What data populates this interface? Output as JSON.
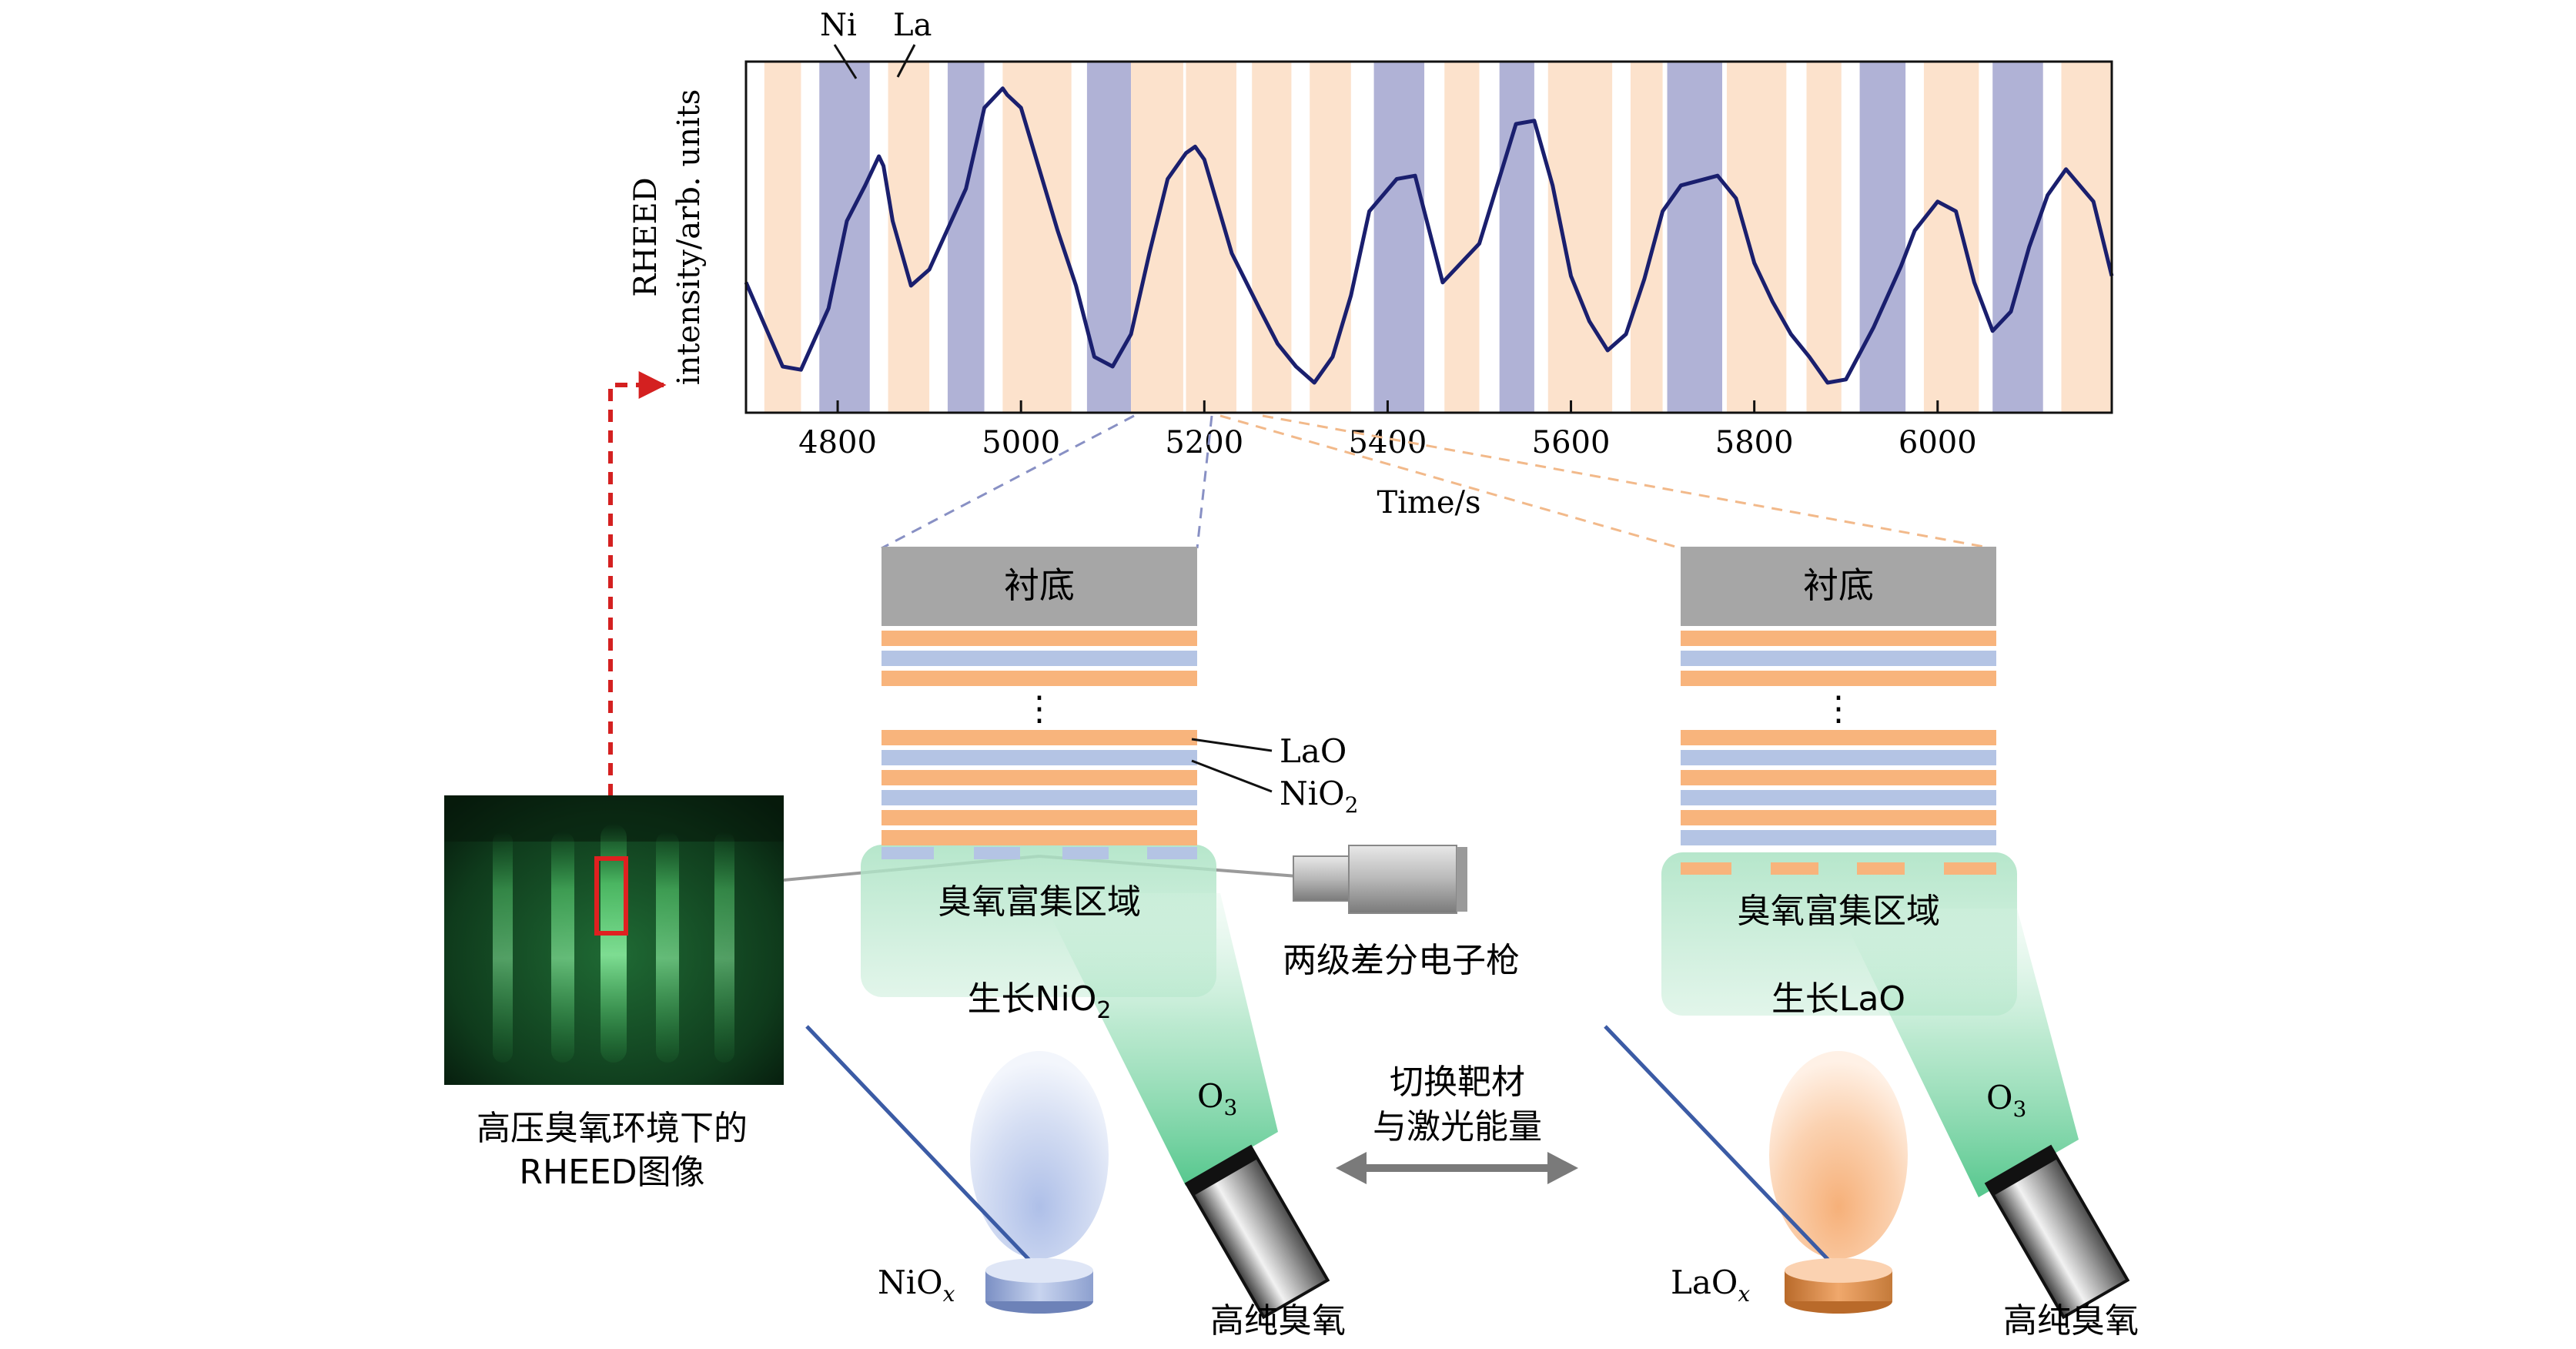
{
  "chart_data": {
    "type": "line",
    "xlabel": "Time/s",
    "ylabel_line1": "RHEED",
    "ylabel_line2": "intensity/arb. units",
    "x_ticks": [
      4800,
      5000,
      5200,
      5400,
      5600,
      5800,
      6000
    ],
    "xlim": [
      4700,
      6190
    ],
    "ylim": [
      0,
      1
    ],
    "legend": {
      "ni": "Ni",
      "la": "La"
    },
    "bands": [
      {
        "start": 4720,
        "end": 4760,
        "kind": "La"
      },
      {
        "start": 4780,
        "end": 4835,
        "kind": "Ni"
      },
      {
        "start": 4855,
        "end": 4900,
        "kind": "La"
      },
      {
        "start": 4920,
        "end": 4960,
        "kind": "Ni"
      },
      {
        "start": 4980,
        "end": 5055,
        "kind": "La"
      },
      {
        "start": 5072,
        "end": 5120,
        "kind": "Ni"
      },
      {
        "start": 5120,
        "end": 5177,
        "kind": "La"
      },
      {
        "start": 5180,
        "end": 5235,
        "kind": "La"
      },
      {
        "start": 5252,
        "end": 5295,
        "kind": "La"
      },
      {
        "start": 5315,
        "end": 5360,
        "kind": "La"
      },
      {
        "start": 5385,
        "end": 5440,
        "kind": "Ni"
      },
      {
        "start": 5462,
        "end": 5500,
        "kind": "La"
      },
      {
        "start": 5522,
        "end": 5560,
        "kind": "Ni"
      },
      {
        "start": 5575,
        "end": 5645,
        "kind": "La"
      },
      {
        "start": 5665,
        "end": 5700,
        "kind": "La"
      },
      {
        "start": 5705,
        "end": 5765,
        "kind": "Ni"
      },
      {
        "start": 5770,
        "end": 5835,
        "kind": "La"
      },
      {
        "start": 5857,
        "end": 5895,
        "kind": "La"
      },
      {
        "start": 5915,
        "end": 5965,
        "kind": "Ni"
      },
      {
        "start": 5985,
        "end": 6045,
        "kind": "La"
      },
      {
        "start": 6060,
        "end": 6115,
        "kind": "Ni"
      },
      {
        "start": 6135,
        "end": 6190,
        "kind": "La"
      }
    ],
    "series": [
      {
        "x": [
          4700,
          4740,
          4760,
          4790,
          4810,
          4830,
          4845,
          4850,
          4860,
          4880,
          4900,
          4940,
          4960,
          4980,
          4985,
          5000,
          5040,
          5060,
          5080,
          5100,
          5120,
          5140,
          5160,
          5180,
          5190,
          5200,
          5230,
          5260,
          5280,
          5300,
          5320,
          5340,
          5360,
          5380,
          5410,
          5430,
          5460,
          5500,
          5540,
          5560,
          5580,
          5600,
          5620,
          5640,
          5660,
          5680,
          5700,
          5720,
          5760,
          5780,
          5800,
          5820,
          5840,
          5860,
          5880,
          5900,
          5930,
          5960,
          5975,
          6000,
          6020,
          6040,
          6060,
          6080,
          6100,
          6120,
          6140,
          6170,
          6190
        ],
        "y": [
          0.36,
          0.1,
          0.09,
          0.28,
          0.55,
          0.66,
          0.75,
          0.72,
          0.55,
          0.35,
          0.4,
          0.65,
          0.9,
          0.96,
          0.94,
          0.9,
          0.52,
          0.35,
          0.13,
          0.1,
          0.2,
          0.45,
          0.68,
          0.76,
          0.78,
          0.74,
          0.45,
          0.28,
          0.17,
          0.1,
          0.05,
          0.13,
          0.32,
          0.58,
          0.68,
          0.69,
          0.36,
          0.48,
          0.85,
          0.86,
          0.66,
          0.38,
          0.24,
          0.15,
          0.2,
          0.37,
          0.58,
          0.66,
          0.69,
          0.62,
          0.42,
          0.3,
          0.2,
          0.13,
          0.05,
          0.06,
          0.22,
          0.41,
          0.52,
          0.61,
          0.58,
          0.36,
          0.21,
          0.27,
          0.47,
          0.63,
          0.71,
          0.61,
          0.38
        ]
      }
    ]
  },
  "left_image": {
    "caption_line1": "高压臭氧环境下的",
    "caption_line2": "RHEED图像"
  },
  "layer_labels": {
    "lao": "LaO",
    "nio2_main": "NiO",
    "nio2_sub": "2"
  },
  "panel_left": {
    "substrate": "衬底",
    "dots": "⋮",
    "ozone_zone": "臭氧富集区域",
    "growth_main": "生长NiO",
    "growth_sub": "2",
    "o3_main": "O",
    "o3_sub": "3",
    "target_main": "NiO",
    "target_sub": "x",
    "gas": "高纯臭氧"
  },
  "panel_right": {
    "substrate": "衬底",
    "dots": "⋮",
    "ozone_zone": "臭氧富集区域",
    "growth": "生长LaO",
    "o3_main": "O",
    "o3_sub": "3",
    "target_main": "LaO",
    "target_sub": "x",
    "gas": "高纯臭氧"
  },
  "electron_gun": "两级差分电子枪",
  "switch_line1": "切换靶材",
  "switch_line2": "与激光能量",
  "colors": {
    "ni_band": "#b0b2d6",
    "la_band": "#fce2cc",
    "curve": "#1a1f6e",
    "lao_layer": "#f8b47c",
    "nio2_layer": "#b4c4e4",
    "substrate": "#a6a6a6",
    "plume": "#7fd3a4",
    "arrow_red": "#d42020"
  }
}
